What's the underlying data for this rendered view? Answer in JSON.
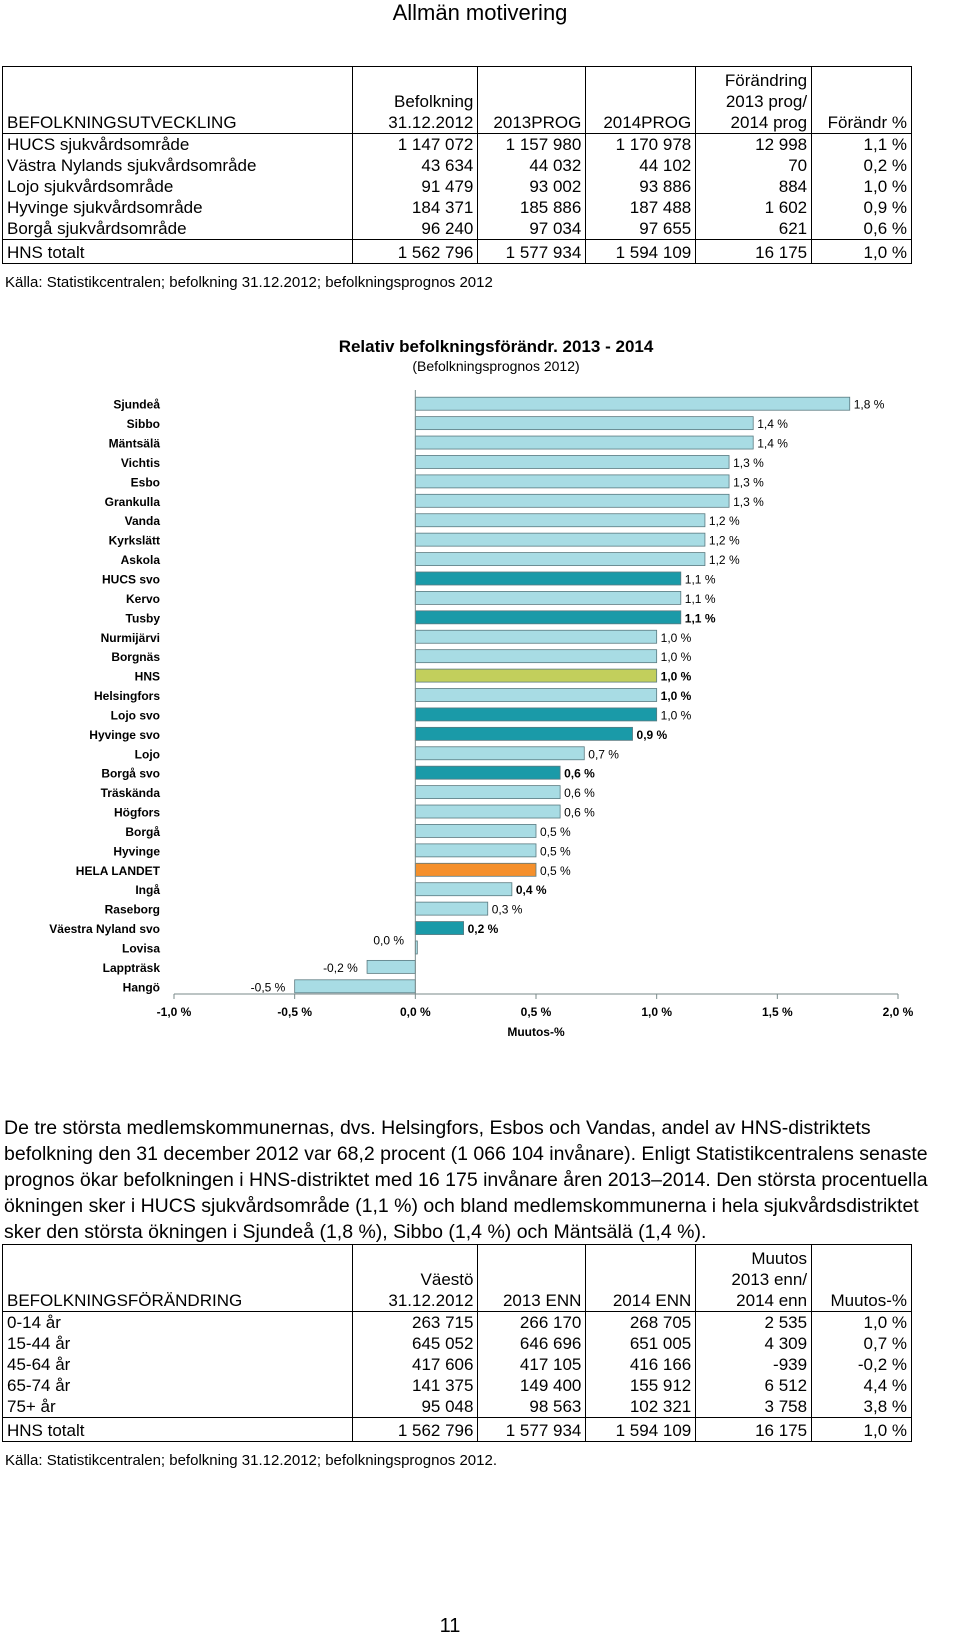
{
  "header": {
    "title": "Allmän motivering"
  },
  "table1": {
    "headers": [
      "BEFOLKNINGSUTVECKLING",
      "Befolkning\n31.12.2012",
      "2013PROG",
      "2014PROG",
      "Förändring\n2013 prog/\n2014 prog",
      "Förändr %"
    ],
    "rows": [
      [
        "HUCS sjukvårdsområde",
        "1 147 072",
        "1 157 980",
        "1 170 978",
        "12 998",
        "1,1 %"
      ],
      [
        "Västra Nylands sjukvårdsområde",
        "43 634",
        "44 032",
        "44 102",
        "70",
        "0,2 %"
      ],
      [
        "Lojo sjukvårdsområde",
        "91 479",
        "93 002",
        "93 886",
        "884",
        "1,0 %"
      ],
      [
        "Hyvinge sjukvårdsområde",
        "184 371",
        "185 886",
        "187 488",
        "1 602",
        "0,9 %"
      ],
      [
        "Borgå sjukvårdsområde",
        "96 240",
        "97 034",
        "97 655",
        "621",
        "0,6 %"
      ]
    ],
    "total": [
      "HNS totalt",
      "1 562 796",
      "1 577 934",
      "1 594 109",
      "16 175",
      "1,0 %"
    ],
    "source": "Källa: Statistikcentralen; befolkning 31.12.2012; befolkningsprognos 2012"
  },
  "chart_data": {
    "type": "bar",
    "orientation": "horizontal",
    "title": "Relativ befolkningsförändr. 2013 - 2014",
    "subtitle": "(Befolkningsprognos 2012)",
    "xlabel": "Muutos-%",
    "xlim": [
      -1.0,
      2.0
    ],
    "x_ticks": [
      -1.0,
      -0.5,
      0.0,
      0.5,
      1.0,
      1.5,
      2.0
    ],
    "x_tick_labels": [
      "-1,0 %",
      "-0,5 %",
      "0,0 %",
      "0,5 %",
      "1,0 %",
      "1,5 %",
      "2,0 %"
    ],
    "categories": [
      "Sjundeå",
      "Sibbo",
      "Mäntsälä",
      "Vichtis",
      "Esbo",
      "Grankulla",
      "Vanda",
      "Kyrkslätt",
      "Askola",
      "HUCS svo",
      "Kervo",
      "Tusby",
      "Nurmijärvi",
      "Borgnäs",
      "HNS",
      "Helsingfors",
      "Lojo svo",
      "Hyvinge svo",
      "Lojo",
      "Borgå svo",
      "Träskända",
      "Högfors",
      "Borgå",
      "Hyvinge",
      "HELA LANDET",
      "Ingå",
      "Raseborg",
      "Väestra Nyland svo",
      "Lovisa",
      "Lappträsk",
      "Hangö"
    ],
    "values": [
      1.8,
      1.4,
      1.4,
      1.3,
      1.3,
      1.3,
      1.2,
      1.2,
      1.2,
      1.1,
      1.1,
      1.1,
      1.0,
      1.0,
      1.0,
      1.0,
      1.0,
      0.9,
      0.7,
      0.6,
      0.6,
      0.6,
      0.5,
      0.5,
      0.5,
      0.4,
      0.3,
      0.2,
      0.0,
      -0.2,
      -0.5
    ],
    "data_labels": [
      "1,8 %",
      "1,4 %",
      "1,4 %",
      "1,3 %",
      "1,3 %",
      "1,3 %",
      "1,2 %",
      "1,2 %",
      "1,2 %",
      "1,1 %",
      "1,1 %",
      "1,1 %",
      "1,0 %",
      "1,0 %",
      "1,0 %",
      "1,0 %",
      "1,0 %",
      "0,9 %",
      "0,7 %",
      "0,6 %",
      "0,6 %",
      "0,6 %",
      "0,5 %",
      "0,5 %",
      "0,5 %",
      "0,4 %",
      "0,3 %",
      "0,2 %",
      "0,0 %",
      "-0,2 %",
      "-0,5 %"
    ],
    "colors": [
      "#a8dce4",
      "#a8dce4",
      "#a8dce4",
      "#a8dce4",
      "#a8dce4",
      "#a8dce4",
      "#a8dce4",
      "#a8dce4",
      "#a8dce4",
      "#1a9aa8",
      "#a8dce4",
      "#1a9aa8",
      "#a8dce4",
      "#a8dce4",
      "#c2cf5c",
      "#a8dce4",
      "#1a9aa8",
      "#1a9aa8",
      "#a8dce4",
      "#1a9aa8",
      "#a8dce4",
      "#a8dce4",
      "#a8dce4",
      "#a8dce4",
      "#f5902c",
      "#a8dce4",
      "#a8dce4",
      "#1a9aa8",
      "#a8dce4",
      "#a8dce4",
      "#a8dce4"
    ],
    "bold_labels": [
      false,
      false,
      false,
      false,
      false,
      false,
      false,
      false,
      false,
      false,
      false,
      true,
      false,
      false,
      true,
      true,
      false,
      true,
      false,
      true,
      false,
      false,
      false,
      false,
      false,
      true,
      false,
      true,
      false,
      false,
      false
    ],
    "grid": false
  },
  "body_text": "De tre största medlemskommunernas, dvs. Helsingfors, Esbos och Vandas, andel av HNS-distriktets befolkning den 31 december 2012 var 68,2 procent (1 066 104 invånare). Enligt Statistikcentralens senaste prognos ökar befolkningen i HNS-distriktet med 16 175 invånare åren 2013–2014. Den största procentuella ökningen sker i HUCS sjukvårdsområde (1,1 %) och bland medlemskommunerna i hela sjukvårdsdistriktet sker den största ökningen i Sjundeå (1,8 %), Sibbo (1,4 %) och Mäntsälä (1,4 %).",
  "table2": {
    "headers": [
      "BEFOLKNINGSFÖRÄNDRING",
      "Väestö\n31.12.2012",
      "2013 ENN",
      "2014 ENN",
      "Muutos\n2013 enn/\n2014 enn",
      "Muutos-%"
    ],
    "rows": [
      [
        "0-14 år",
        "263 715",
        "266 170",
        "268 705",
        "2 535",
        "1,0 %"
      ],
      [
        "15-44 år",
        "645 052",
        "646 696",
        "651 005",
        "4 309",
        "0,7 %"
      ],
      [
        "45-64 år",
        "417 606",
        "417 105",
        "416 166",
        "-939",
        "-0,2 %"
      ],
      [
        "65-74 år",
        "141 375",
        "149 400",
        "155 912",
        "6 512",
        "4,4 %"
      ],
      [
        "75+ år",
        "95 048",
        "98 563",
        "102 321",
        "3 758",
        "3,8 %"
      ]
    ],
    "total": [
      "HNS totalt",
      "1 562 796",
      "1 577 934",
      "1 594 109",
      "16 175",
      "1,0 %"
    ],
    "source": "Källa: Statistikcentralen; befolkning 31.12.2012; befolkningsprognos 2012."
  },
  "page_number": "11"
}
